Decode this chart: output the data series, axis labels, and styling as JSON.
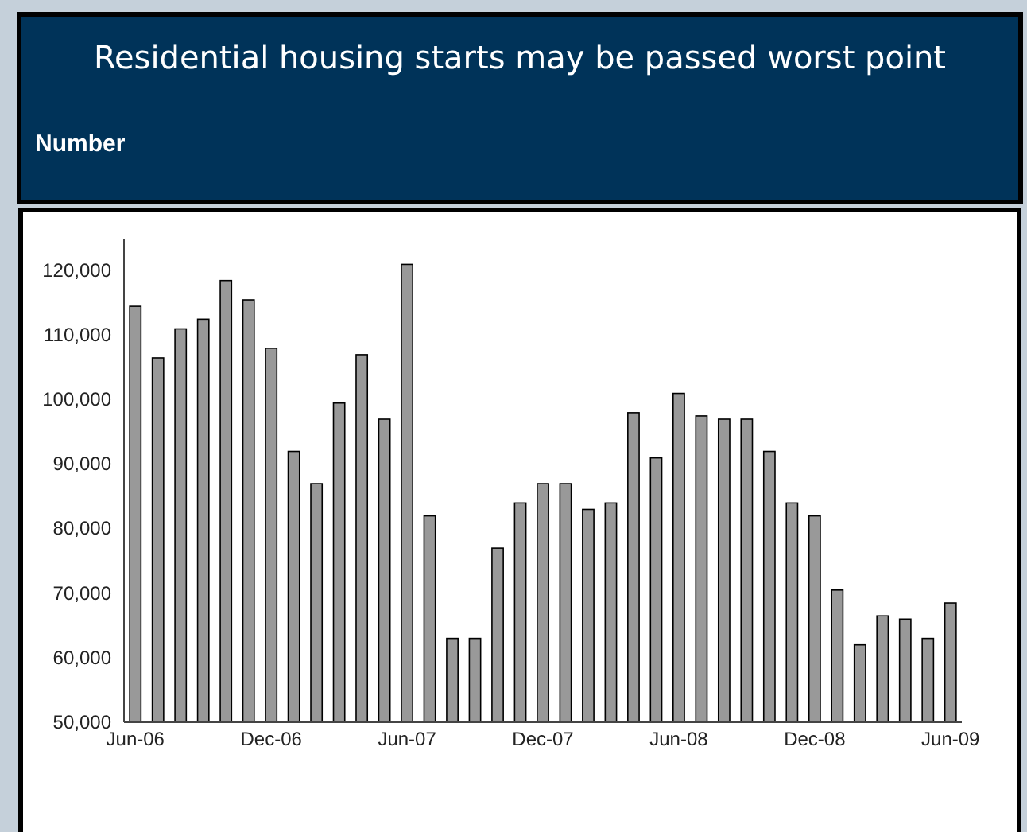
{
  "chart_data": {
    "type": "bar",
    "title": "Residential housing starts may be passed worst point",
    "ylabel": "Number",
    "categories": [
      "Jun-06",
      null,
      null,
      null,
      null,
      null,
      "Dec-06",
      null,
      null,
      null,
      null,
      null,
      "Jun-07",
      null,
      null,
      null,
      null,
      null,
      "Dec-07",
      null,
      null,
      null,
      null,
      null,
      "Jun-08",
      null,
      null,
      null,
      null,
      null,
      "Dec-08",
      null,
      null,
      null,
      null,
      null,
      "Jun-09"
    ],
    "values": [
      114500,
      106500,
      111000,
      112500,
      118500,
      115500,
      108000,
      92000,
      87000,
      99500,
      107000,
      97000,
      121000,
      82000,
      63000,
      63000,
      77000,
      84000,
      87000,
      87000,
      83000,
      84000,
      98000,
      91000,
      101000,
      97500,
      97000,
      97000,
      92000,
      84000,
      82000,
      70500,
      62000,
      66500,
      66000,
      63000,
      68500
    ],
    "color": "#999999",
    "ylim": [
      50000,
      125000
    ],
    "yticks": [
      {
        "value": 50000,
        "label": "50,000"
      },
      {
        "value": 60000,
        "label": "60,000"
      },
      {
        "value": 70000,
        "label": "70,000"
      },
      {
        "value": 80000,
        "label": "80,000"
      },
      {
        "value": 90000,
        "label": "90,000"
      },
      {
        "value": 100000,
        "label": "100,000"
      },
      {
        "value": 110000,
        "label": "110,000"
      },
      {
        "value": 120000,
        "label": "120,000"
      }
    ],
    "grid": false
  }
}
